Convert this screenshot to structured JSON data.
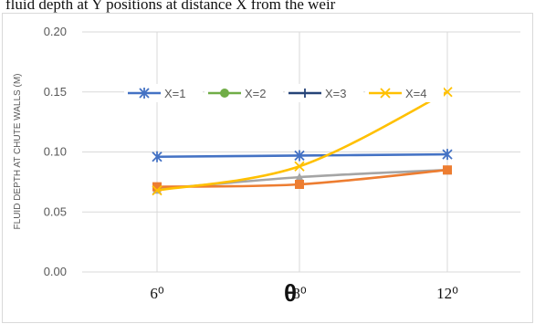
{
  "caption": "fluid depth at Y positions at distance X from the weir",
  "chart_data": {
    "type": "line",
    "categories": [
      "6⁰",
      "8⁰",
      "12⁰"
    ],
    "xlabel": "θ",
    "ylabel": "FLUID DEPTH AT CHUTE WALLS (M)",
    "ylim": [
      0,
      0.2
    ],
    "yticks": [
      "0.00",
      "0.05",
      "0.10",
      "0.15",
      "0.20"
    ],
    "grid": true,
    "legend_position": "top",
    "series": [
      {
        "name": "X=1",
        "color": "#4472c4",
        "marker": "asterisk",
        "values": [
          0.096,
          0.097,
          0.098
        ]
      },
      {
        "name": "X=2",
        "color": "#70ad47",
        "marker": "circle",
        "values": [
          null,
          null,
          null
        ]
      },
      {
        "name": "X=3",
        "color": "#264478",
        "marker": "plus",
        "values": [
          null,
          null,
          null
        ]
      },
      {
        "name": "X=4",
        "color": "#ffc000",
        "marker": "x",
        "values": [
          0.068,
          0.088,
          0.15
        ]
      },
      {
        "name": "",
        "color": "#ed7d31",
        "marker": "square",
        "values": [
          0.071,
          0.073,
          0.085
        ],
        "in_legend": false
      },
      {
        "name": "",
        "color": "#a5a5a5",
        "marker": "triangle",
        "values": [
          0.069,
          0.079,
          0.085
        ],
        "in_legend": false
      }
    ]
  }
}
